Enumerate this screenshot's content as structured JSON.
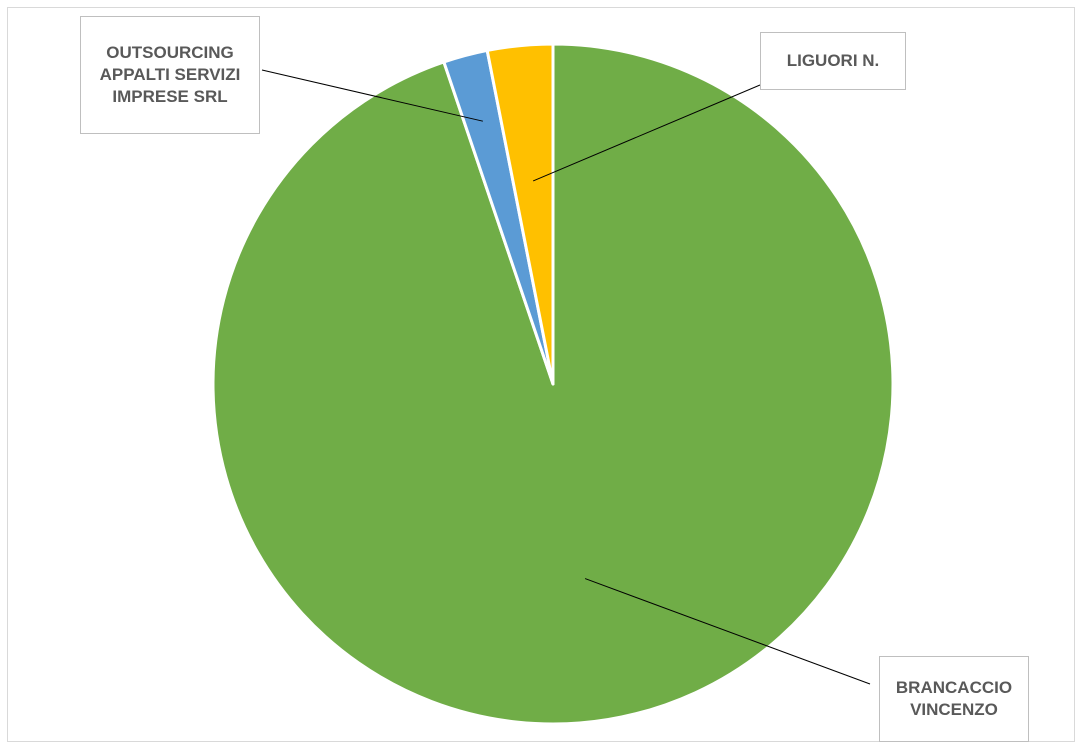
{
  "chart_data": {
    "type": "pie",
    "title": "",
    "start_angle_deg": 0,
    "direction": "clockwise",
    "slices": [
      {
        "label": "BRANCACCIO\nVINCENZO",
        "value": 94.8,
        "color": "#70ad47"
      },
      {
        "label": "OUTSOURCING\nAPPALTI SERVIZI\nIMPRESE SRL",
        "value": 2.1,
        "color": "#5b9bd5"
      },
      {
        "label": "LIGUORI N.",
        "value": 3.1,
        "color": "#ffc000"
      }
    ]
  }
}
